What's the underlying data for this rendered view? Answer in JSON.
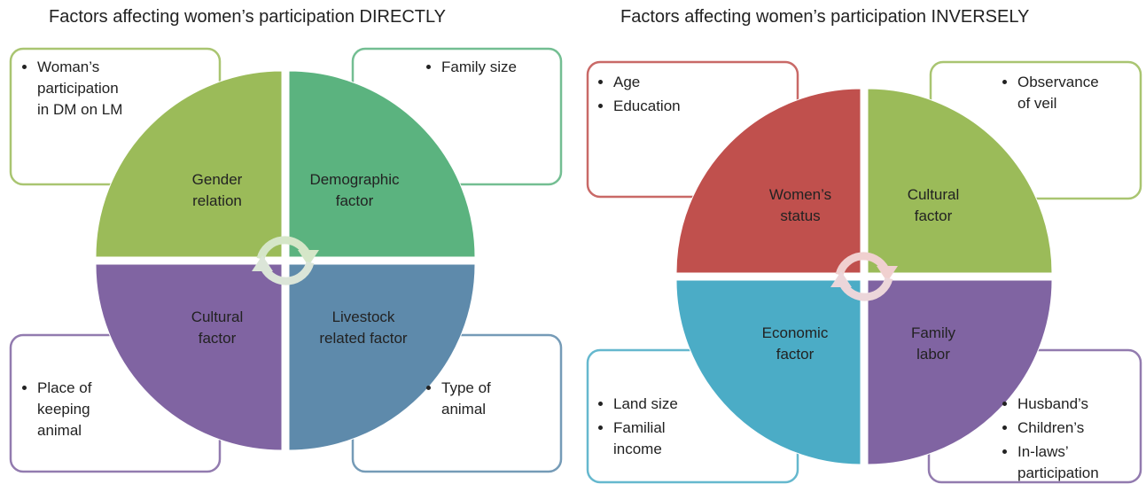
{
  "panels": [
    {
      "title": "Factors affecting women’s participation DIRECTLY",
      "quadrants": [
        {
          "label": "Gender relation",
          "items": [
            "Woman’s participation in DM on LM"
          ]
        },
        {
          "label": "Demographic factor",
          "items": [
            "Family size"
          ]
        },
        {
          "label": "Cultural factor",
          "items": [
            "Place of keeping animal"
          ]
        },
        {
          "label": "Livestock related factor",
          "items": [
            "Type of animal"
          ]
        }
      ]
    },
    {
      "title": "Factors affecting women’s participation INVERSELY",
      "quadrants": [
        {
          "label": "Women’s status",
          "items": [
            "Age",
            "Education"
          ]
        },
        {
          "label": "Cultural factor",
          "items": [
            "Observance of veil"
          ]
        },
        {
          "label": "Economic factor",
          "items": [
            "Land size",
            "Familial income"
          ]
        },
        {
          "label": "Family labor",
          "items": [
            "Husband’s",
            "Children’s",
            "In-laws’ participation"
          ]
        }
      ]
    }
  ]
}
